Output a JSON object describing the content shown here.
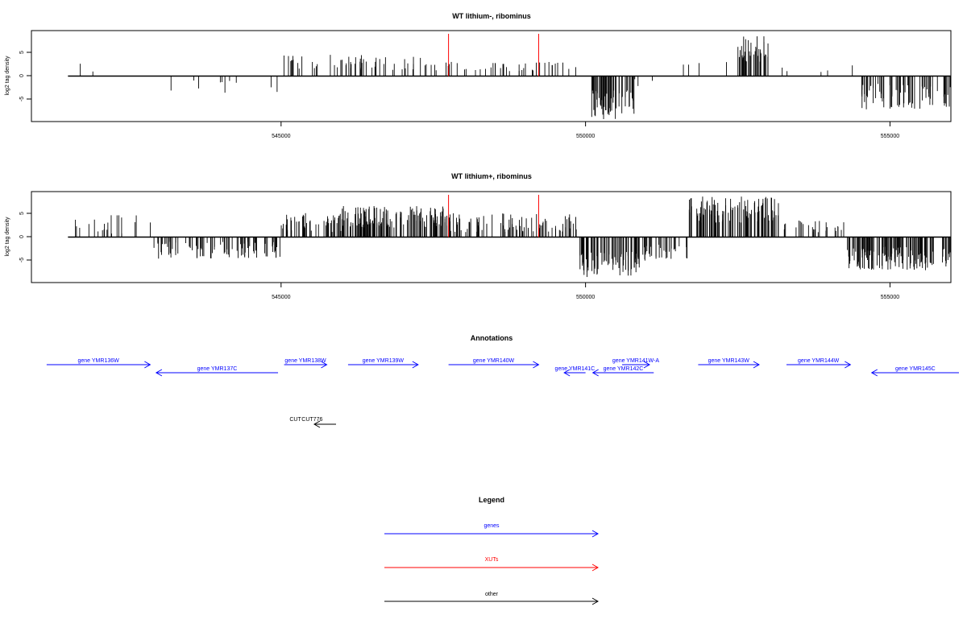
{
  "colors": {
    "genes": "#0000ff",
    "xuts": "#ff0000",
    "other": "#000000",
    "signal": "#000000",
    "marker": "#ff0000"
  },
  "chart_data": [
    {
      "type": "bar",
      "title": "WT lithium-, ribominus",
      "ylabel": "log2 tag density",
      "xlabel": "",
      "xlim": [
        540900,
        556000
      ],
      "ylim": [
        -9.5,
        9.5
      ],
      "x_ticks": [
        545000,
        550000,
        555000
      ],
      "x_tick_labels": [
        "545000",
        "550000",
        "555000"
      ],
      "y_ticks": [
        -5,
        0,
        5
      ],
      "y_tick_labels": [
        "-5",
        "0",
        "5"
      ],
      "grid": false,
      "baseline": {
        "from": 541500,
        "to": 556000,
        "y": 0
      },
      "marker_lines": [
        547750,
        549230
      ],
      "signal_profile": [
        {
          "from": 541500,
          "to": 543000,
          "density": 0.04,
          "ymin": 0.5,
          "ymax": 3.5
        },
        {
          "from": 543000,
          "to": 545000,
          "density": 0.12,
          "ymin": -4.0,
          "ymax": -0.5
        },
        {
          "from": 545000,
          "to": 547700,
          "density": 0.55,
          "ymin": 1.0,
          "ymax": 4.5
        },
        {
          "from": 547700,
          "to": 549400,
          "density": 0.45,
          "ymin": 1.0,
          "ymax": 3.0
        },
        {
          "from": 549400,
          "to": 550100,
          "density": 0.25,
          "ymin": 1.0,
          "ymax": 3.0
        },
        {
          "from": 550100,
          "to": 550800,
          "density": 2.0,
          "ymin": -9.0,
          "ymax": -3.0
        },
        {
          "from": 550800,
          "to": 551200,
          "density": 0.2,
          "ymin": -3.0,
          "ymax": -0.5
        },
        {
          "from": 551600,
          "to": 552500,
          "density": 0.12,
          "ymin": 1.0,
          "ymax": 7.5
        },
        {
          "from": 552500,
          "to": 553000,
          "density": 2.0,
          "ymin": 3.0,
          "ymax": 8.5
        },
        {
          "from": 553000,
          "to": 554500,
          "density": 0.08,
          "ymin": 0.5,
          "ymax": 2.5
        },
        {
          "from": 554500,
          "to": 556000,
          "density": 1.2,
          "ymin": -7.0,
          "ymax": -1.5
        }
      ]
    },
    {
      "type": "bar",
      "title": "WT lithium+, ribominus",
      "ylabel": "log2 tag density",
      "xlabel": "",
      "xlim": [
        540900,
        556000
      ],
      "ylim": [
        -9.5,
        9.5
      ],
      "x_ticks": [
        545000,
        550000,
        555000
      ],
      "x_tick_labels": [
        "545000",
        "550000",
        "555000"
      ],
      "y_ticks": [
        -5,
        0,
        5
      ],
      "y_tick_labels": [
        "-5",
        "0",
        "5"
      ],
      "grid": false,
      "baseline": {
        "from": 541500,
        "to": 556000,
        "y": 0
      },
      "marker_lines": [
        547750,
        549230
      ],
      "signal_profile": [
        {
          "from": 541500,
          "to": 542900,
          "density": 0.35,
          "ymin": 0.5,
          "ymax": 5.0
        },
        {
          "from": 542900,
          "to": 545000,
          "density": 1.0,
          "ymin": -4.5,
          "ymax": -1.0
        },
        {
          "from": 545000,
          "to": 546000,
          "density": 1.2,
          "ymin": 1.0,
          "ymax": 5.0
        },
        {
          "from": 546000,
          "to": 547700,
          "density": 2.0,
          "ymin": 2.0,
          "ymax": 6.5
        },
        {
          "from": 547700,
          "to": 549900,
          "density": 1.0,
          "ymin": 1.0,
          "ymax": 5.0
        },
        {
          "from": 549900,
          "to": 550900,
          "density": 2.0,
          "ymin": -8.5,
          "ymax": -3.0
        },
        {
          "from": 550900,
          "to": 551700,
          "density": 1.0,
          "ymin": -5.0,
          "ymax": -1.5
        },
        {
          "from": 551700,
          "to": 553200,
          "density": 1.8,
          "ymin": 3.0,
          "ymax": 8.5
        },
        {
          "from": 553200,
          "to": 554300,
          "density": 0.6,
          "ymin": 1.0,
          "ymax": 3.5
        },
        {
          "from": 554300,
          "to": 556000,
          "density": 2.0,
          "ymin": -7.0,
          "ymax": -2.0
        }
      ]
    },
    {
      "type": "annotation_track",
      "title": "Annotations",
      "xlim": [
        540900,
        556000
      ],
      "features": [
        {
          "label": "gene YMR136W",
          "start": 541150,
          "end": 542850,
          "strand": "+",
          "row": 0,
          "class": "genes"
        },
        {
          "label": "gene YMR137C",
          "start": 542950,
          "end": 544950,
          "strand": "-",
          "row": 1,
          "class": "genes"
        },
        {
          "label": "gene YMR138W",
          "start": 545050,
          "end": 545750,
          "strand": "+",
          "row": 0,
          "class": "genes"
        },
        {
          "label": "gene YMR139W",
          "start": 546100,
          "end": 547250,
          "strand": "+",
          "row": 0,
          "class": "genes"
        },
        {
          "label": "gene YMR140W",
          "start": 547750,
          "end": 549230,
          "strand": "+",
          "row": 0,
          "class": "genes"
        },
        {
          "label": "gene YMR141C",
          "start": 549650,
          "end": 550000,
          "strand": "-",
          "row": 1,
          "class": "genes"
        },
        {
          "label": "gene YMR142C",
          "start": 550120,
          "end": 551120,
          "strand": "-",
          "row": 1,
          "class": "genes"
        },
        {
          "label": "gene YMR141W-A",
          "start": 550600,
          "end": 551050,
          "strand": "+",
          "row": 0,
          "class": "genes"
        },
        {
          "label": "gene YMR143W",
          "start": 551850,
          "end": 552850,
          "strand": "+",
          "row": 0,
          "class": "genes"
        },
        {
          "label": "gene YMR144W",
          "start": 553300,
          "end": 554350,
          "strand": "+",
          "row": 0,
          "class": "genes"
        },
        {
          "label": "gene YMR145C",
          "start": 554700,
          "end": 556350,
          "strand": "-",
          "row": 1,
          "class": "genes"
        },
        {
          "label": "CUT",
          "start": 545070,
          "end": 545400,
          "strand": "-",
          "row": 2,
          "class": "other"
        },
        {
          "label": "CUT776",
          "start": 545320,
          "end": 545700,
          "strand": "-",
          "row": 2,
          "class": "other"
        }
      ]
    }
  ],
  "legend": {
    "title": "Legend",
    "items": [
      {
        "label": "genes",
        "class": "genes"
      },
      {
        "label": "XUTs",
        "class": "xuts"
      },
      {
        "label": "other",
        "class": "other"
      }
    ]
  }
}
